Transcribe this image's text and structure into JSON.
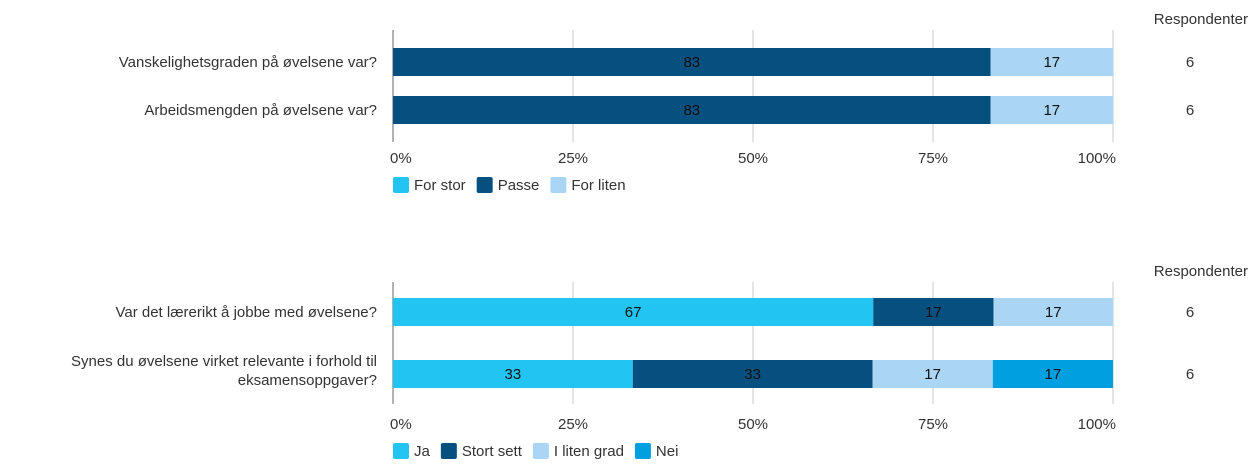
{
  "chart_data": [
    {
      "type": "bar",
      "orientation": "horizontal",
      "stacked": true,
      "respondents_header": "Respondenter",
      "categories": [
        "Vanskelighetsgraden på øvelsene var?",
        "Arbeidsmengden på øvelsene var?"
      ],
      "respondents": [
        "6",
        "6"
      ],
      "series": [
        {
          "name": "For stor",
          "color": "#22c4f2",
          "values": [
            0,
            0
          ]
        },
        {
          "name": "Passe",
          "color": "#06507f",
          "values": [
            83,
            83
          ]
        },
        {
          "name": "For liten",
          "color": "#aad5f5",
          "values": [
            17,
            17
          ]
        }
      ],
      "data_labels": [
        [
          "",
          "83",
          "17"
        ],
        [
          "",
          "83",
          "17"
        ]
      ],
      "xlim": [
        0,
        100
      ],
      "xticks": [
        "0%",
        "25%",
        "50%",
        "75%",
        "100%"
      ],
      "grid": true,
      "legend_position": "bottom-left"
    },
    {
      "type": "bar",
      "orientation": "horizontal",
      "stacked": true,
      "respondents_header": "Respondenter",
      "categories": [
        "Var det lærerikt å jobbe med øvelsene?",
        "Synes du øvelsene virket relevante i forhold til eksamensoppgaver?"
      ],
      "category_lines": [
        [
          "Var det lærerikt å jobbe med øvelsene?"
        ],
        [
          "Synes du øvelsene virket relevante i forhold til",
          "eksamensoppgaver?"
        ]
      ],
      "respondents": [
        "6",
        "6"
      ],
      "series": [
        {
          "name": "Ja",
          "color": "#22c4f2",
          "values": [
            66.7,
            33.3
          ]
        },
        {
          "name": "Stort sett",
          "color": "#06507f",
          "values": [
            16.7,
            33.3
          ]
        },
        {
          "name": "I liten grad",
          "color": "#aad5f5",
          "values": [
            16.6,
            16.7
          ]
        },
        {
          "name": "Nei",
          "color": "#009fe0",
          "values": [
            0,
            16.7
          ]
        }
      ],
      "data_labels": [
        [
          "67",
          "17",
          "17",
          ""
        ],
        [
          "33",
          "33",
          "17",
          "17"
        ]
      ],
      "xlim": [
        0,
        100
      ],
      "xticks": [
        "0%",
        "25%",
        "50%",
        "75%",
        "100%"
      ],
      "grid": true,
      "legend_position": "bottom-left"
    }
  ]
}
